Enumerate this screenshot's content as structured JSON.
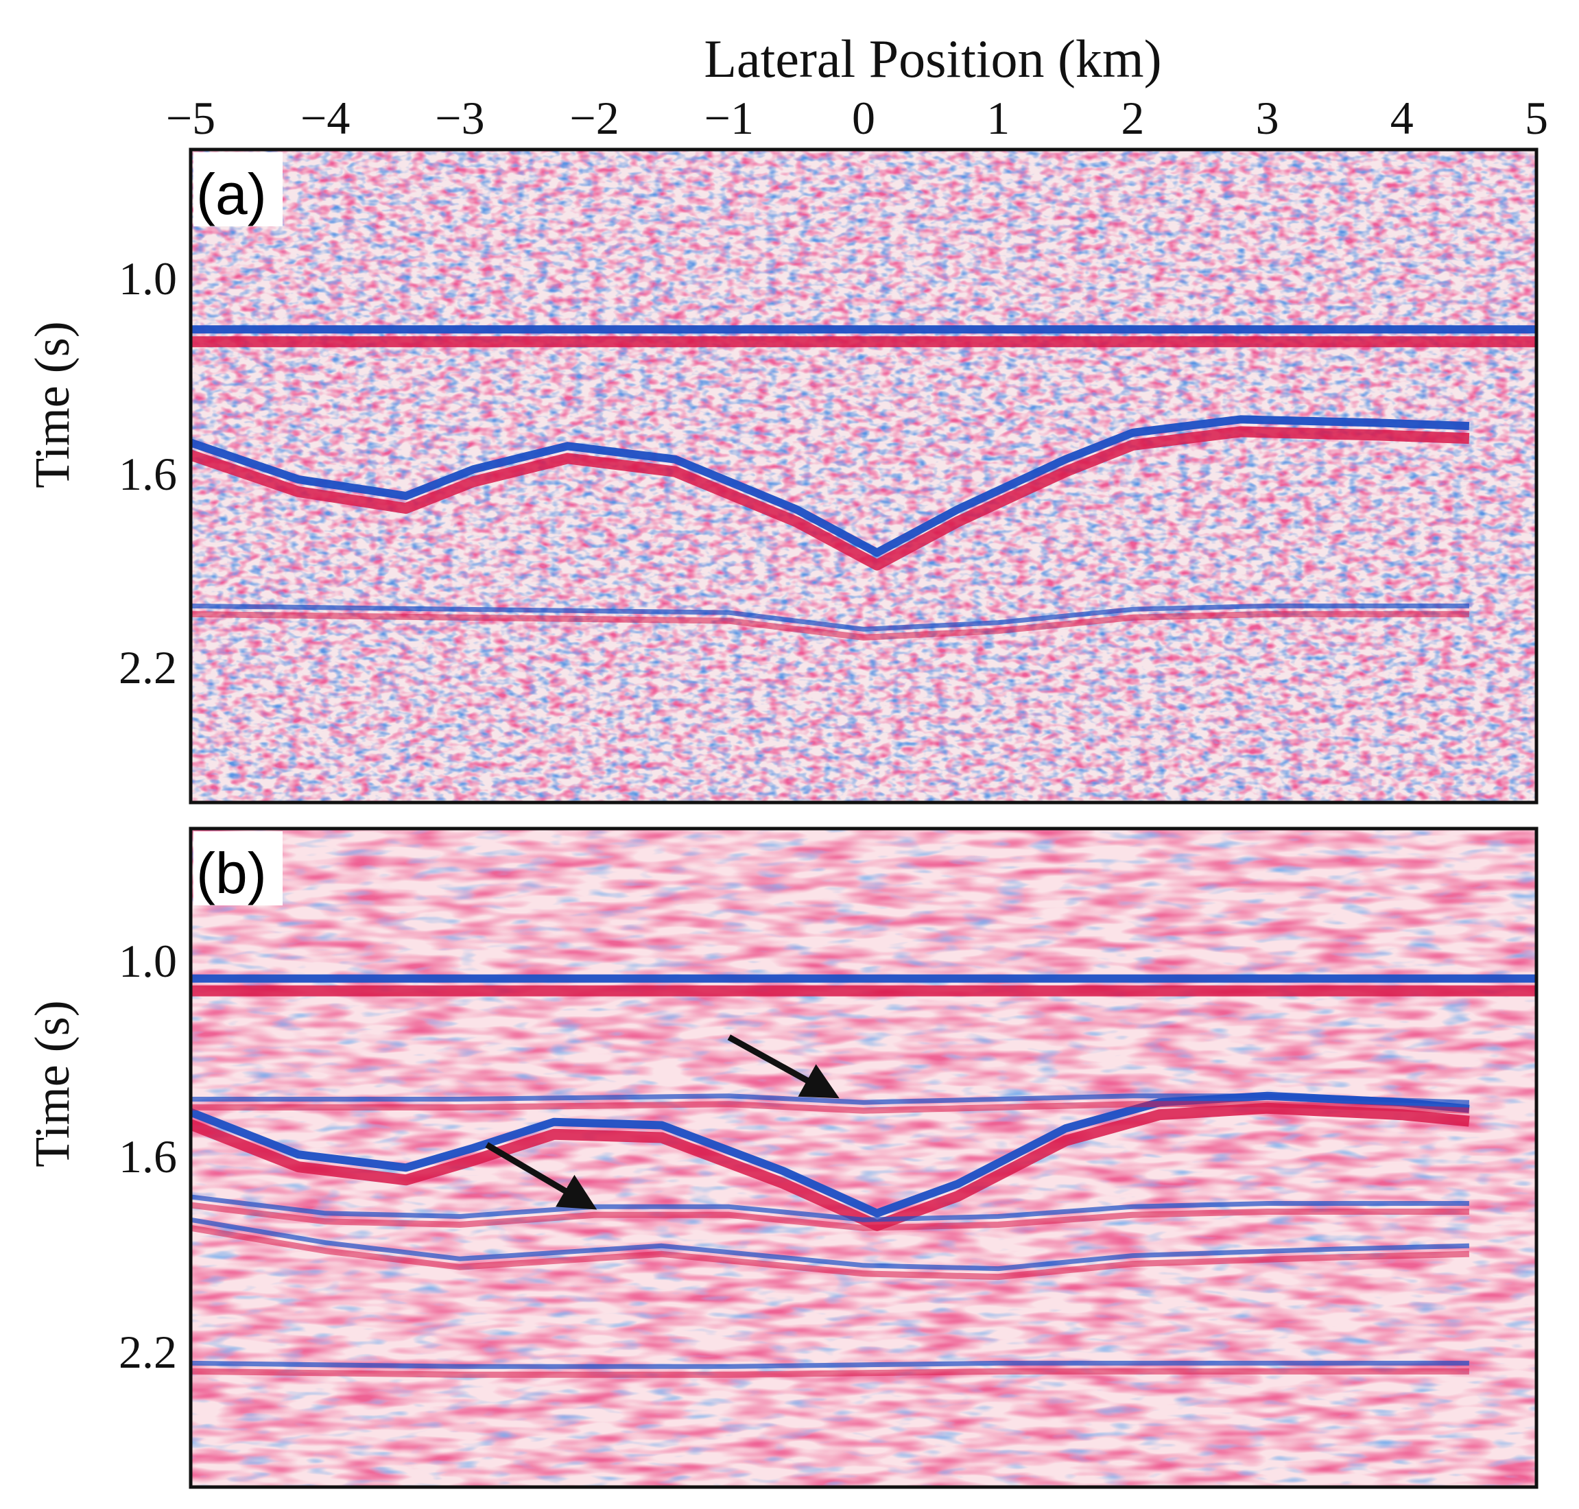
{
  "figure": {
    "x_axis": {
      "label": "Lateral Position (km)",
      "ticks": [
        "−5",
        "−4",
        "−3",
        "−2",
        "−1",
        "0",
        "1",
        "2",
        "3",
        "4",
        "5"
      ],
      "range": [
        -5,
        5
      ]
    },
    "panels": [
      {
        "id": "a",
        "label": "(a)",
        "y_label": "Time (s)",
        "y_ticks": [
          "1.0",
          "1.6",
          "2.2"
        ],
        "y_range": [
          0.62,
          2.58
        ],
        "background": "noisy",
        "reflectors": [
          [
            [
              -5,
              1.16
            ],
            [
              5,
              1.16
            ]
          ],
          [
            [
              -5,
              1.5
            ],
            [
              -4.2,
              1.61
            ],
            [
              -3.4,
              1.66
            ],
            [
              -2.9,
              1.58
            ],
            [
              -2.2,
              1.51
            ],
            [
              -1.4,
              1.55
            ],
            [
              -0.5,
              1.7
            ],
            [
              0.1,
              1.83
            ],
            [
              0.7,
              1.7
            ],
            [
              1.5,
              1.55
            ],
            [
              2.0,
              1.47
            ],
            [
              2.8,
              1.43
            ],
            [
              3.8,
              1.44
            ],
            [
              4.5,
              1.45
            ]
          ],
          [
            [
              -5,
              1.99
            ],
            [
              -3,
              2.0
            ],
            [
              -1,
              2.01
            ],
            [
              0,
              2.06
            ],
            [
              1,
              2.04
            ],
            [
              2,
              2.0
            ],
            [
              3,
              1.99
            ],
            [
              4.5,
              1.99
            ]
          ]
        ]
      },
      {
        "id": "b",
        "label": "(b)",
        "y_label": "Time (s)",
        "y_ticks": [
          "1.0",
          "1.6",
          "2.2"
        ],
        "y_range": [
          0.38,
          2.4
        ],
        "background": "clean",
        "reflectors": [
          [
            [
              -5,
              0.84
            ],
            [
              5,
              0.84
            ]
          ],
          [
            [
              -5,
              1.25
            ],
            [
              -4.2,
              1.38
            ],
            [
              -3.4,
              1.42
            ],
            [
              -2.9,
              1.36
            ],
            [
              -2.3,
              1.28
            ],
            [
              -1.5,
              1.29
            ],
            [
              -0.6,
              1.43
            ],
            [
              0.1,
              1.56
            ],
            [
              0.7,
              1.47
            ],
            [
              1.5,
              1.3
            ],
            [
              2.2,
              1.22
            ],
            [
              3,
              1.2
            ],
            [
              4.0,
              1.22
            ],
            [
              4.5,
              1.24
            ]
          ],
          [
            [
              -5,
              1.21
            ],
            [
              -3,
              1.21
            ],
            [
              -1,
              1.2
            ],
            [
              0,
              1.22
            ],
            [
              1,
              1.21
            ],
            [
              2,
              1.2
            ],
            [
              3,
              1.2
            ],
            [
              4.5,
              1.22
            ]
          ],
          [
            [
              -5,
              1.58
            ],
            [
              -4,
              1.65
            ],
            [
              -3,
              1.7
            ],
            [
              -1.5,
              1.66
            ],
            [
              0,
              1.72
            ],
            [
              1,
              1.73
            ],
            [
              2,
              1.69
            ],
            [
              3.5,
              1.67
            ],
            [
              4.5,
              1.66
            ]
          ],
          [
            [
              -5,
              1.51
            ],
            [
              -4,
              1.56
            ],
            [
              -3,
              1.57
            ],
            [
              -2,
              1.54
            ],
            [
              -1,
              1.54
            ],
            [
              0,
              1.58
            ],
            [
              1,
              1.57
            ],
            [
              2,
              1.54
            ],
            [
              3,
              1.53
            ],
            [
              4.5,
              1.53
            ]
          ],
          [
            [
              -5,
              2.02
            ],
            [
              -3,
              2.03
            ],
            [
              -1,
              2.03
            ],
            [
              1,
              2.02
            ],
            [
              3,
              2.02
            ],
            [
              4.5,
              2.02
            ]
          ]
        ],
        "arrows": [
          {
            "from": [
              -1.0,
              1.02
            ],
            "to": [
              -0.3,
              1.18
            ]
          },
          {
            "from": [
              -2.8,
              1.35
            ],
            "to": [
              -2.1,
              1.52
            ]
          }
        ]
      }
    ],
    "colors": {
      "positive": "#d8194a",
      "negative": "#1c4fc4",
      "background": "#fbe1e6"
    }
  }
}
